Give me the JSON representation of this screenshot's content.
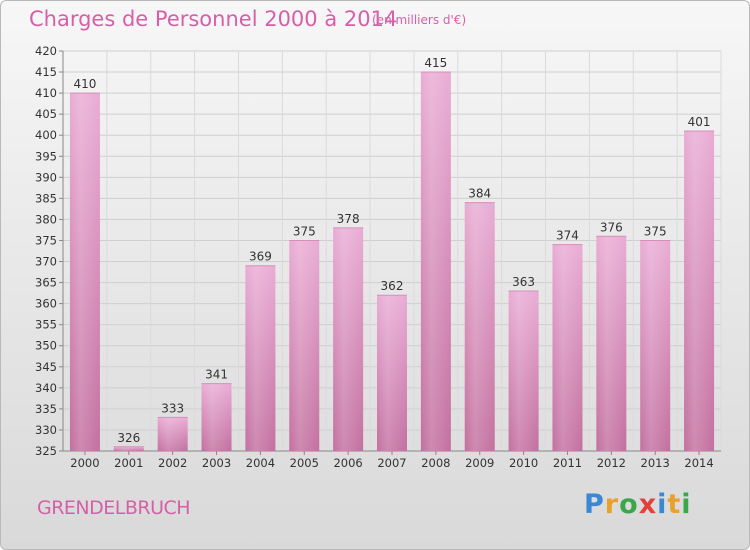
{
  "title": "Charges de Personnel 2000 à 2014",
  "subtitle": "(en milliers d'€)",
  "commune": "GRENDELBRUCH",
  "logo": {
    "text": "Proxiti",
    "letters": [
      {
        "ch": "P",
        "color": "#3a87d6"
      },
      {
        "ch": "r",
        "color": "#e8a22c"
      },
      {
        "ch": "o",
        "color": "#3aa84a"
      },
      {
        "ch": "x",
        "color": "#e3403a"
      },
      {
        "ch": "i",
        "color": "#3a87d6"
      },
      {
        "ch": "t",
        "color": "#e8a22c"
      },
      {
        "ch": "i",
        "color": "#3aa84a"
      }
    ]
  },
  "colors": {
    "title": "#d660a8",
    "bar_light": "#e7a9d2",
    "bar_dark": "#c2709f",
    "grid": "#c8c8c8"
  },
  "chart_data": {
    "type": "bar",
    "title": "Charges de Personnel 2000 à 2014",
    "subtitle": "(en milliers d'€)",
    "categories": [
      "2000",
      "2001",
      "2002",
      "2003",
      "2004",
      "2005",
      "2006",
      "2007",
      "2008",
      "2009",
      "2010",
      "2011",
      "2012",
      "2013",
      "2014"
    ],
    "values": [
      410,
      326,
      333,
      341,
      369,
      375,
      378,
      362,
      415,
      384,
      363,
      374,
      376,
      375,
      401
    ],
    "ylim": [
      325,
      420
    ],
    "ytick_step": 5,
    "grid": true,
    "data_labels": true
  }
}
